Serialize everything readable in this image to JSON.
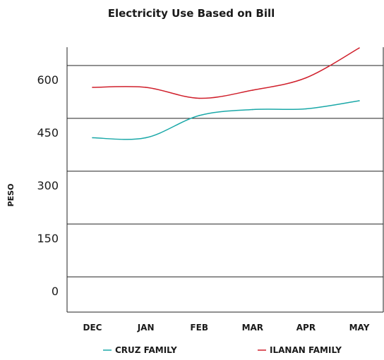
{
  "chart_data": {
    "type": "line",
    "title": "Electricity Use Based on Bill",
    "xlabel": "",
    "ylabel": "PESO",
    "categories": [
      "DEC",
      "JAN",
      "FEB",
      "MAR",
      "APR",
      "MAY"
    ],
    "yticks": [
      0,
      150,
      300,
      450,
      600
    ],
    "ylim": [
      -100,
      652
    ],
    "grid": "horizontal",
    "legend_position": "bottom",
    "series": [
      {
        "name": "CRUZ FAMILY",
        "color": "#1aa8a8",
        "x": [
          0.0,
          1.0,
          2.0,
          3.0,
          4.0,
          5.0
        ],
        "values": [
          395,
          395,
          458,
          475,
          477,
          500
        ]
      },
      {
        "name": "ILANAN FAMILY",
        "color": "#d0202c",
        "x": [
          0.0,
          1.0,
          2.0,
          3.0,
          4.0,
          5.0
        ],
        "values": [
          538,
          538,
          507,
          530,
          565,
          650
        ]
      }
    ]
  }
}
